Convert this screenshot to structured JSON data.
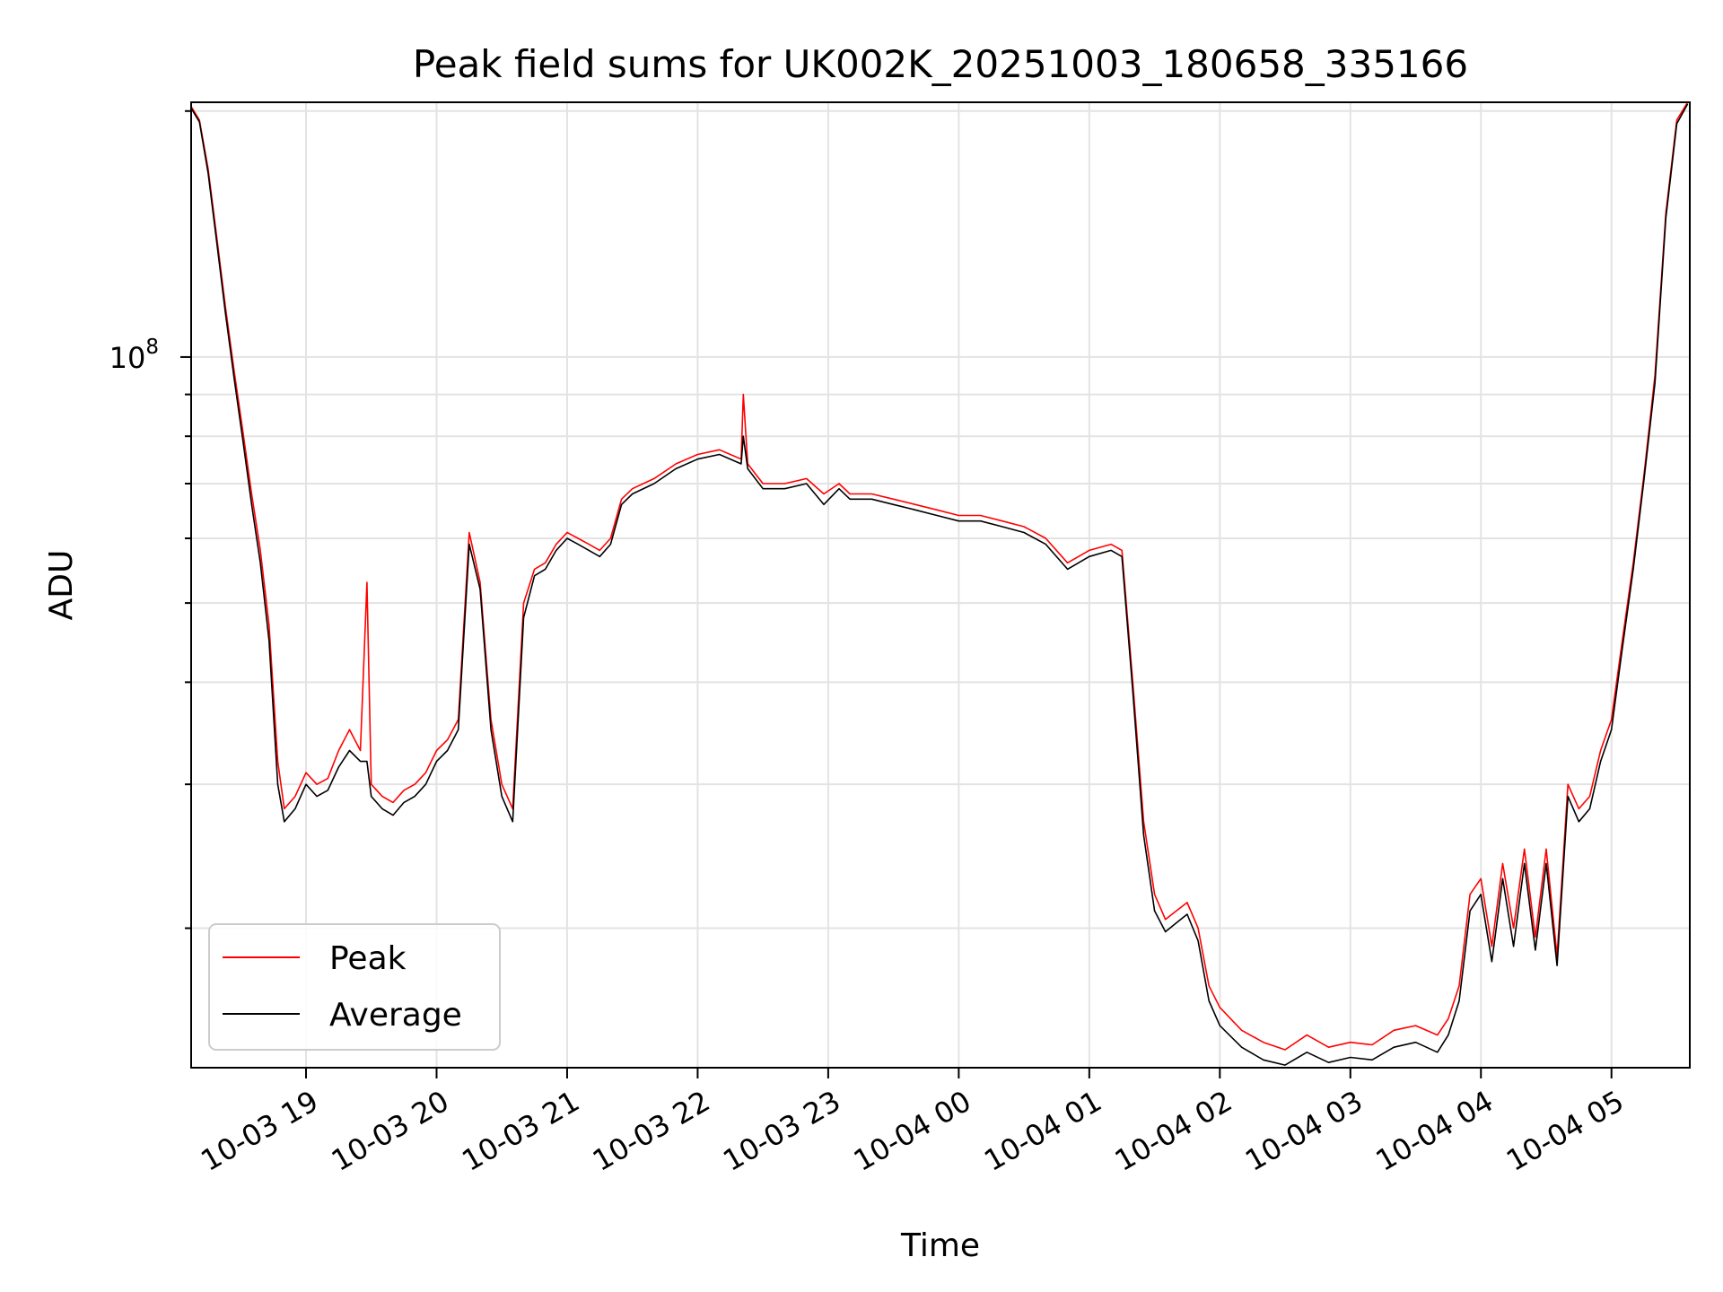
{
  "chart_data": {
    "type": "line",
    "title": "Peak field sums for UK002K_20251003_180658_335166",
    "xlabel": "Time",
    "ylabel": "ADU",
    "y_scale": "log",
    "ylim": [
      13500000,
      205000000
    ],
    "xlim_hours": [
      18.12,
      29.6
    ],
    "grid": true,
    "legend_position": "lower-left",
    "x_tick_labels": [
      "10-03 19",
      "10-03 20",
      "10-03 21",
      "10-03 22",
      "10-03 23",
      "10-04 00",
      "10-04 01",
      "10-04 02",
      "10-04 03",
      "10-04 04",
      "10-04 05"
    ],
    "y_tick_labels": [
      {
        "base": "10",
        "exp": "8"
      }
    ],
    "series": [
      {
        "name": "Peak",
        "color": "#ff0000",
        "x": [
          "10-03 18:07",
          "10-03 18:11",
          "10-03 18:15",
          "10-03 18:19",
          "10-03 18:23",
          "10-03 18:27",
          "10-03 18:31",
          "10-03 18:35",
          "10-03 18:39",
          "10-03 18:43",
          "10-03 18:47",
          "10-03 18:50",
          "10-03 18:55",
          "10-03 19:00",
          "10-03 19:05",
          "10-03 19:10",
          "10-03 19:15",
          "10-03 19:20",
          "10-03 19:25",
          "10-03 19:28",
          "10-03 19:30",
          "10-03 19:35",
          "10-03 19:40",
          "10-03 19:45",
          "10-03 19:50",
          "10-03 19:55",
          "10-03 20:00",
          "10-03 20:05",
          "10-03 20:10",
          "10-03 20:15",
          "10-03 20:20",
          "10-03 20:25",
          "10-03 20:30",
          "10-03 20:35",
          "10-03 20:40",
          "10-03 20:45",
          "10-03 20:50",
          "10-03 20:55",
          "10-03 21:00",
          "10-03 21:05",
          "10-03 21:10",
          "10-03 21:15",
          "10-03 21:20",
          "10-03 21:25",
          "10-03 21:30",
          "10-03 21:40",
          "10-03 21:50",
          "10-03 22:00",
          "10-03 22:10",
          "10-03 22:20",
          "10-03 22:21",
          "10-03 22:23",
          "10-03 22:30",
          "10-03 22:40",
          "10-03 22:50",
          "10-03 22:58",
          "10-03 23:05",
          "10-03 23:10",
          "10-03 23:20",
          "10-03 23:30",
          "10-03 23:40",
          "10-03 23:50",
          "10-04 00:00",
          "10-04 00:10",
          "10-04 00:20",
          "10-04 00:30",
          "10-04 00:40",
          "10-04 00:50",
          "10-04 01:00",
          "10-04 01:10",
          "10-04 01:15",
          "10-04 01:20",
          "10-04 01:25",
          "10-04 01:30",
          "10-04 01:35",
          "10-04 01:40",
          "10-04 01:45",
          "10-04 01:50",
          "10-04 01:55",
          "10-04 02:00",
          "10-04 02:10",
          "10-04 02:20",
          "10-04 02:30",
          "10-04 02:40",
          "10-04 02:50",
          "10-04 03:00",
          "10-04 03:10",
          "10-04 03:20",
          "10-04 03:30",
          "10-04 03:40",
          "10-04 03:45",
          "10-04 03:50",
          "10-04 03:55",
          "10-04 04:00",
          "10-04 04:05",
          "10-04 04:10",
          "10-04 04:15",
          "10-04 04:20",
          "10-04 04:25",
          "10-04 04:30",
          "10-04 04:35",
          "10-04 04:40",
          "10-04 04:45",
          "10-04 04:50",
          "10-04 04:55",
          "10-04 05:00",
          "10-04 05:05",
          "10-04 05:10",
          "10-04 05:15",
          "10-04 05:20",
          "10-04 05:25",
          "10-04 05:30",
          "10-04 05:35"
        ],
        "y": [
          203000000,
          195000000,
          170000000,
          140000000,
          115000000,
          96000000,
          81000000,
          68000000,
          58000000,
          47000000,
          32000000,
          28000000,
          29000000,
          31000000,
          30000000,
          30500000,
          33000000,
          35000000,
          33000000,
          53000000,
          30000000,
          29000000,
          28500000,
          29500000,
          30000000,
          31000000,
          33000000,
          34000000,
          36000000,
          61000000,
          53000000,
          36000000,
          30000000,
          28000000,
          50000000,
          55000000,
          56000000,
          59000000,
          61000000,
          60000000,
          59000000,
          58000000,
          60000000,
          67000000,
          69000000,
          71000000,
          74000000,
          76000000,
          77000000,
          75000000,
          90000000,
          74000000,
          70000000,
          70000000,
          71000000,
          68000000,
          70000000,
          68000000,
          68000000,
          67000000,
          66000000,
          65000000,
          64000000,
          64000000,
          63000000,
          62000000,
          60000000,
          56000000,
          58000000,
          59000000,
          58000000,
          40000000,
          27000000,
          22000000,
          20500000,
          21000000,
          21500000,
          20000000,
          17000000,
          16000000,
          15000000,
          14500000,
          14200000,
          14800000,
          14300000,
          14500000,
          14400000,
          15000000,
          15200000,
          14800000,
          15500000,
          17000000,
          22000000,
          23000000,
          19000000,
          24000000,
          20000000,
          25000000,
          19500000,
          25000000,
          18500000,
          30000000,
          28000000,
          29000000,
          33000000,
          36000000,
          45000000,
          56000000,
          72000000,
          95000000,
          150000000,
          195000000,
          205000000
        ]
      },
      {
        "name": "Average",
        "color": "#000000",
        "x": [
          "10-03 18:07",
          "10-03 18:11",
          "10-03 18:15",
          "10-03 18:19",
          "10-03 18:23",
          "10-03 18:27",
          "10-03 18:31",
          "10-03 18:35",
          "10-03 18:39",
          "10-03 18:43",
          "10-03 18:47",
          "10-03 18:50",
          "10-03 18:55",
          "10-03 19:00",
          "10-03 19:05",
          "10-03 19:10",
          "10-03 19:15",
          "10-03 19:20",
          "10-03 19:25",
          "10-03 19:28",
          "10-03 19:30",
          "10-03 19:35",
          "10-03 19:40",
          "10-03 19:45",
          "10-03 19:50",
          "10-03 19:55",
          "10-03 20:00",
          "10-03 20:05",
          "10-03 20:10",
          "10-03 20:15",
          "10-03 20:20",
          "10-03 20:25",
          "10-03 20:30",
          "10-03 20:35",
          "10-03 20:40",
          "10-03 20:45",
          "10-03 20:50",
          "10-03 20:55",
          "10-03 21:00",
          "10-03 21:05",
          "10-03 21:10",
          "10-03 21:15",
          "10-03 21:20",
          "10-03 21:25",
          "10-03 21:30",
          "10-03 21:40",
          "10-03 21:50",
          "10-03 22:00",
          "10-03 22:10",
          "10-03 22:20",
          "10-03 22:21",
          "10-03 22:23",
          "10-03 22:30",
          "10-03 22:40",
          "10-03 22:50",
          "10-03 22:58",
          "10-03 23:05",
          "10-03 23:10",
          "10-03 23:20",
          "10-03 23:30",
          "10-03 23:40",
          "10-03 23:50",
          "10-04 00:00",
          "10-04 00:10",
          "10-04 00:20",
          "10-04 00:30",
          "10-04 00:40",
          "10-04 00:50",
          "10-04 01:00",
          "10-04 01:10",
          "10-04 01:15",
          "10-04 01:20",
          "10-04 01:25",
          "10-04 01:30",
          "10-04 01:35",
          "10-04 01:40",
          "10-04 01:45",
          "10-04 01:50",
          "10-04 01:55",
          "10-04 02:00",
          "10-04 02:10",
          "10-04 02:20",
          "10-04 02:30",
          "10-04 02:40",
          "10-04 02:50",
          "10-04 03:00",
          "10-04 03:10",
          "10-04 03:20",
          "10-04 03:30",
          "10-04 03:40",
          "10-04 03:45",
          "10-04 03:50",
          "10-04 03:55",
          "10-04 04:00",
          "10-04 04:05",
          "10-04 04:10",
          "10-04 04:15",
          "10-04 04:20",
          "10-04 04:25",
          "10-04 04:30",
          "10-04 04:35",
          "10-04 04:40",
          "10-04 04:45",
          "10-04 04:50",
          "10-04 04:55",
          "10-04 05:00",
          "10-04 05:05",
          "10-04 05:10",
          "10-04 05:15",
          "10-04 05:20",
          "10-04 05:25",
          "10-04 05:30",
          "10-04 05:35"
        ],
        "y": [
          202000000,
          194000000,
          168000000,
          138000000,
          113000000,
          94000000,
          79000000,
          66000000,
          56000000,
          45000000,
          30000000,
          27000000,
          28000000,
          30000000,
          29000000,
          29500000,
          31500000,
          33000000,
          32000000,
          32000000,
          29000000,
          28000000,
          27500000,
          28500000,
          29000000,
          30000000,
          32000000,
          33000000,
          35000000,
          59000000,
          52000000,
          35000000,
          29000000,
          27000000,
          48000000,
          54000000,
          55000000,
          58000000,
          60000000,
          59000000,
          58000000,
          57000000,
          59000000,
          66000000,
          68000000,
          70000000,
          73000000,
          75000000,
          76000000,
          74000000,
          80000000,
          73000000,
          69000000,
          69000000,
          70000000,
          66000000,
          69000000,
          67000000,
          67000000,
          66000000,
          65000000,
          64000000,
          63000000,
          63000000,
          62000000,
          61000000,
          59000000,
          55000000,
          57000000,
          58000000,
          57000000,
          39000000,
          26000000,
          21000000,
          19800000,
          20300000,
          20800000,
          19300000,
          16300000,
          15200000,
          14300000,
          13800000,
          13600000,
          14100000,
          13700000,
          13900000,
          13800000,
          14300000,
          14500000,
          14100000,
          14800000,
          16300000,
          21000000,
          22000000,
          18200000,
          23000000,
          19000000,
          24000000,
          18800000,
          24000000,
          18000000,
          29000000,
          27000000,
          28000000,
          32000000,
          35000000,
          44000000,
          55000000,
          71000000,
          93000000,
          148000000,
          193000000,
          204000000
        ]
      }
    ]
  }
}
